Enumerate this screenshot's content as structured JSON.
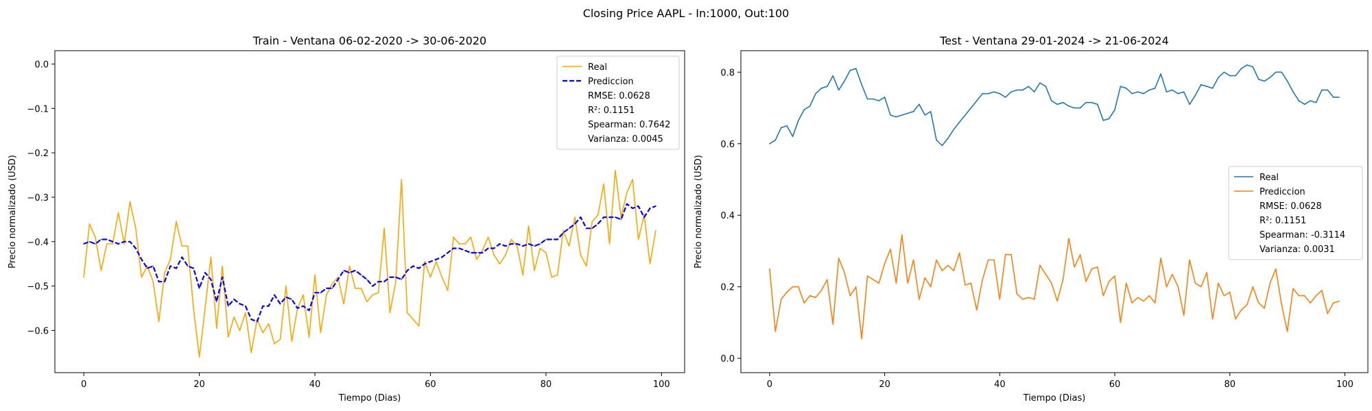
{
  "figure": {
    "suptitle": "Closing Price AAPL - In:1000, Out:100"
  },
  "chart_data": [
    {
      "type": "line",
      "title": "Train - Ventana 06-02-2020 -> 30-06-2020",
      "xlabel": "Tiempo (Dias)",
      "ylabel": "Precio normalizado (USD)",
      "xlim": [
        -5,
        104
      ],
      "ylim": [
        -0.695,
        0.03
      ],
      "xticks": [
        0,
        20,
        40,
        60,
        80,
        100
      ],
      "yticks": [
        0.0,
        -0.1,
        -0.2,
        -0.3,
        -0.4,
        -0.5,
        -0.6
      ],
      "ytick_labels": [
        "0.0",
        "−0.1",
        "−0.2",
        "−0.3",
        "−0.4",
        "−0.5",
        "−0.6"
      ],
      "legend": {
        "placement": "top-right",
        "entries": [
          "Real",
          "Prediccion"
        ],
        "stats": [
          "RMSE: 0.0628",
          "R²: 0.1151",
          "Spearman: 0.7642",
          "Varianza: 0.0045"
        ]
      },
      "series": [
        {
          "name": "Real",
          "color": "#FFA500",
          "dash": "solid",
          "values": [
            -0.48,
            -0.36,
            -0.39,
            -0.465,
            -0.405,
            -0.405,
            -0.335,
            -0.405,
            -0.31,
            -0.37,
            -0.48,
            -0.455,
            -0.49,
            -0.58,
            -0.47,
            -0.44,
            -0.355,
            -0.41,
            -0.41,
            -0.55,
            -0.66,
            -0.55,
            -0.435,
            -0.595,
            -0.455,
            -0.615,
            -0.57,
            -0.6,
            -0.56,
            -0.65,
            -0.575,
            -0.605,
            -0.585,
            -0.63,
            -0.62,
            -0.5,
            -0.625,
            -0.55,
            -0.52,
            -0.615,
            -0.475,
            -0.605,
            -0.52,
            -0.495,
            -0.48,
            -0.54,
            -0.455,
            -0.505,
            -0.505,
            -0.535,
            -0.52,
            -0.515,
            -0.37,
            -0.56,
            -0.49,
            -0.26,
            -0.56,
            -0.575,
            -0.59,
            -0.445,
            -0.48,
            -0.445,
            -0.48,
            -0.51,
            -0.39,
            -0.405,
            -0.405,
            -0.39,
            -0.44,
            -0.42,
            -0.39,
            -0.43,
            -0.45,
            -0.43,
            -0.395,
            -0.41,
            -0.475,
            -0.365,
            -0.465,
            -0.415,
            -0.425,
            -0.48,
            -0.475,
            -0.375,
            -0.41,
            -0.345,
            -0.43,
            -0.455,
            -0.355,
            -0.34,
            -0.27,
            -0.405,
            -0.24,
            -0.345,
            -0.29,
            -0.26,
            -0.395,
            -0.34,
            -0.45,
            -0.375
          ]
        },
        {
          "name": "Prediccion",
          "color": "#0000FF",
          "dash": "dashed",
          "values": [
            -0.405,
            -0.4,
            -0.405,
            -0.395,
            -0.395,
            -0.4,
            -0.405,
            -0.4,
            -0.4,
            -0.415,
            -0.44,
            -0.46,
            -0.455,
            -0.49,
            -0.49,
            -0.455,
            -0.46,
            -0.435,
            -0.455,
            -0.46,
            -0.505,
            -0.47,
            -0.485,
            -0.535,
            -0.48,
            -0.545,
            -0.53,
            -0.54,
            -0.545,
            -0.575,
            -0.58,
            -0.545,
            -0.545,
            -0.52,
            -0.54,
            -0.525,
            -0.53,
            -0.55,
            -0.545,
            -0.555,
            -0.515,
            -0.515,
            -0.505,
            -0.505,
            -0.485,
            -0.465,
            -0.47,
            -0.465,
            -0.475,
            -0.485,
            -0.5,
            -0.49,
            -0.49,
            -0.48,
            -0.48,
            -0.485,
            -0.465,
            -0.455,
            -0.46,
            -0.45,
            -0.445,
            -0.44,
            -0.435,
            -0.425,
            -0.415,
            -0.415,
            -0.42,
            -0.425,
            -0.425,
            -0.425,
            -0.415,
            -0.415,
            -0.405,
            -0.41,
            -0.405,
            -0.405,
            -0.41,
            -0.405,
            -0.41,
            -0.405,
            -0.395,
            -0.395,
            -0.395,
            -0.38,
            -0.37,
            -0.36,
            -0.345,
            -0.37,
            -0.37,
            -0.36,
            -0.345,
            -0.345,
            -0.345,
            -0.35,
            -0.315,
            -0.325,
            -0.32,
            -0.345,
            -0.325,
            -0.32
          ]
        }
      ]
    },
    {
      "type": "line",
      "title": "Test - Ventana 29-01-2024 -> 21-06-2024",
      "xlabel": "Tiempo (Dias)",
      "ylabel": "Precio normalizado (USD)",
      "xlim": [
        -5,
        104
      ],
      "ylim": [
        -0.04,
        0.86
      ],
      "xticks": [
        0,
        20,
        40,
        60,
        80,
        100
      ],
      "yticks": [
        0.0,
        0.2,
        0.4,
        0.6,
        0.8
      ],
      "ytick_labels": [
        "0.0",
        "0.2",
        "0.4",
        "0.6",
        "0.8"
      ],
      "legend": {
        "placement": "center-right",
        "entries": [
          "Real",
          "Prediccion"
        ],
        "stats": [
          "RMSE: 0.0628",
          "R²: 0.1151",
          "Spearman: -0.3114",
          "Varianza: 0.0031"
        ]
      },
      "series": [
        {
          "name": "Real",
          "color": "#1f77b4",
          "dash": "solid",
          "values": [
            0.6,
            0.61,
            0.645,
            0.65,
            0.62,
            0.665,
            0.695,
            0.705,
            0.74,
            0.755,
            0.76,
            0.79,
            0.75,
            0.775,
            0.805,
            0.81,
            0.765,
            0.725,
            0.725,
            0.72,
            0.73,
            0.68,
            0.675,
            0.68,
            0.685,
            0.69,
            0.71,
            0.68,
            0.69,
            0.61,
            0.595,
            0.615,
            0.64,
            0.66,
            0.68,
            0.7,
            0.72,
            0.74,
            0.74,
            0.745,
            0.74,
            0.73,
            0.745,
            0.75,
            0.75,
            0.76,
            0.745,
            0.77,
            0.76,
            0.72,
            0.71,
            0.715,
            0.705,
            0.7,
            0.7,
            0.715,
            0.715,
            0.71,
            0.665,
            0.67,
            0.695,
            0.76,
            0.755,
            0.74,
            0.745,
            0.74,
            0.75,
            0.755,
            0.795,
            0.745,
            0.75,
            0.74,
            0.745,
            0.71,
            0.735,
            0.765,
            0.76,
            0.755,
            0.785,
            0.8,
            0.79,
            0.79,
            0.81,
            0.82,
            0.815,
            0.78,
            0.775,
            0.785,
            0.8,
            0.8,
            0.775,
            0.745,
            0.72,
            0.71,
            0.72,
            0.715,
            0.75,
            0.75,
            0.73,
            0.73
          ]
        },
        {
          "name": "Prediccion",
          "color": "#ff7f0e",
          "dash": "solid",
          "values": [
            0.25,
            0.075,
            0.165,
            0.185,
            0.2,
            0.2,
            0.155,
            0.175,
            0.17,
            0.19,
            0.22,
            0.095,
            0.28,
            0.24,
            0.175,
            0.2,
            0.055,
            0.23,
            0.22,
            0.21,
            0.265,
            0.305,
            0.21,
            0.345,
            0.21,
            0.275,
            0.165,
            0.225,
            0.2,
            0.275,
            0.245,
            0.26,
            0.245,
            0.295,
            0.205,
            0.21,
            0.135,
            0.22,
            0.275,
            0.275,
            0.165,
            0.29,
            0.29,
            0.18,
            0.165,
            0.17,
            0.165,
            0.26,
            0.235,
            0.21,
            0.16,
            0.22,
            0.335,
            0.255,
            0.29,
            0.215,
            0.25,
            0.255,
            0.175,
            0.215,
            0.23,
            0.1,
            0.21,
            0.155,
            0.17,
            0.16,
            0.175,
            0.155,
            0.28,
            0.2,
            0.235,
            0.2,
            0.12,
            0.275,
            0.21,
            0.2,
            0.24,
            0.11,
            0.21,
            0.175,
            0.185,
            0.11,
            0.135,
            0.15,
            0.2,
            0.155,
            0.14,
            0.21,
            0.25,
            0.15,
            0.075,
            0.195,
            0.175,
            0.175,
            0.155,
            0.175,
            0.19,
            0.125,
            0.155,
            0.16
          ]
        }
      ]
    }
  ]
}
